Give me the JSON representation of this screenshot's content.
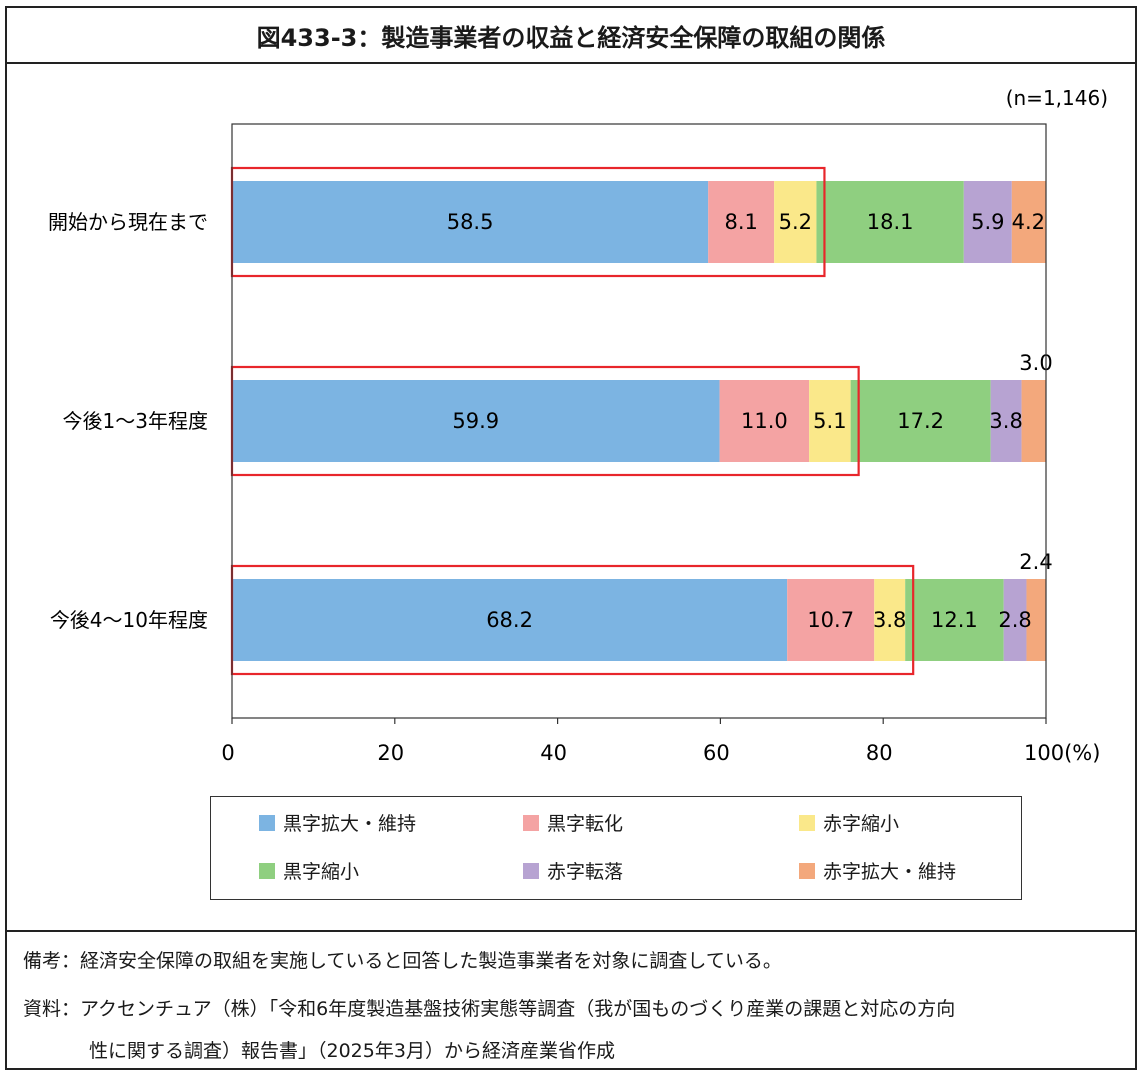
{
  "title": "図433-3：製造事業者の収益と経済安全保障の取組の関係",
  "n_label": "(n=1,146)",
  "x_axis_suffix": "(%)",
  "notes": {
    "line1": "備考：経済安全保障の取組を実施していると回答した製造事業者を対象に調査している。",
    "line2": "資料：アクセンチュア（株）「令和6年度製造基盤技術実態等調査（我が国ものづくり産業の課題と対応の方向",
    "line3": "性に関する調査）報告書」（2025年3月）から経済産業省作成"
  },
  "chart_data": {
    "type": "bar",
    "orientation": "horizontal",
    "stacked": true,
    "categories": [
      "開始から現在まで",
      "今後1～3年程度",
      "今後4～10年程度"
    ],
    "series": [
      {
        "name": "黒字拡大・維持",
        "values": [
          58.5,
          59.9,
          68.2
        ],
        "color": "#7cb4e2"
      },
      {
        "name": "黒字転化",
        "values": [
          8.1,
          11.0,
          10.7
        ],
        "color": "#f4a3a3"
      },
      {
        "name": "赤字縮小",
        "values": [
          5.2,
          5.1,
          3.8
        ],
        "color": "#fae88a"
      },
      {
        "name": "黒字縮小",
        "values": [
          18.1,
          17.2,
          12.1
        ],
        "color": "#8fcf80"
      },
      {
        "name": "赤字転落",
        "values": [
          5.9,
          3.8,
          2.8
        ],
        "color": "#b7a3d2"
      },
      {
        "name": "赤字拡大・維持",
        "values": [
          4.2,
          3.0,
          2.4
        ],
        "color": "#f3a87c"
      }
    ],
    "xlim": [
      0,
      100
    ],
    "xticks": [
      0,
      20,
      40,
      60,
      80,
      100
    ],
    "legend_position": "bottom",
    "highlight_boxes_series_count": 3,
    "highlight_color": "#e8262b"
  }
}
